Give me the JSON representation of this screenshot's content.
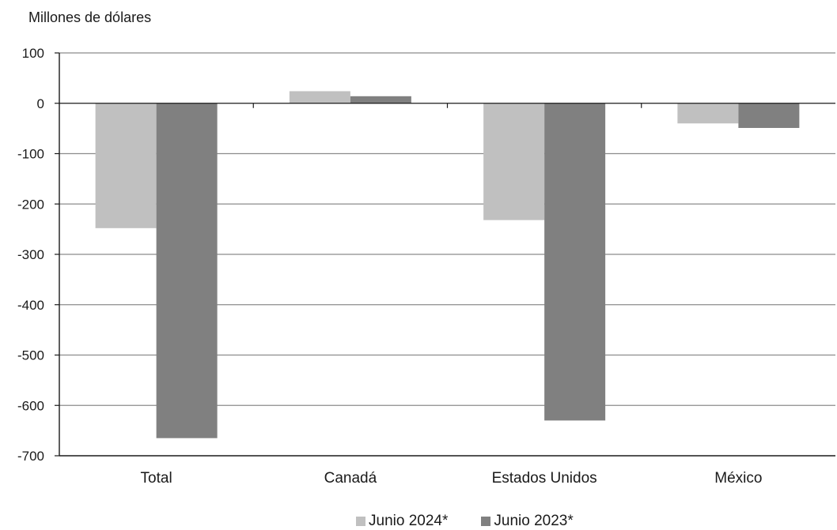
{
  "chart_data": {
    "type": "bar",
    "ylabel": "Millones de dólares",
    "categories": [
      "Total",
      "Canadá",
      "Estados Unidos",
      "México"
    ],
    "series": [
      {
        "name": "Junio 2024*",
        "color": "#c0c0c0",
        "values": [
          -248,
          24,
          -232,
          -40
        ]
      },
      {
        "name": "Junio 2023*",
        "color": "#808080",
        "values": [
          -665,
          14,
          -630,
          -49
        ]
      }
    ],
    "ylim": [
      -700,
      100
    ],
    "yticks": [
      100,
      0,
      -100,
      -200,
      -300,
      -400,
      -500,
      -600,
      -700
    ],
    "grid": true,
    "legend_position": "bottom"
  }
}
